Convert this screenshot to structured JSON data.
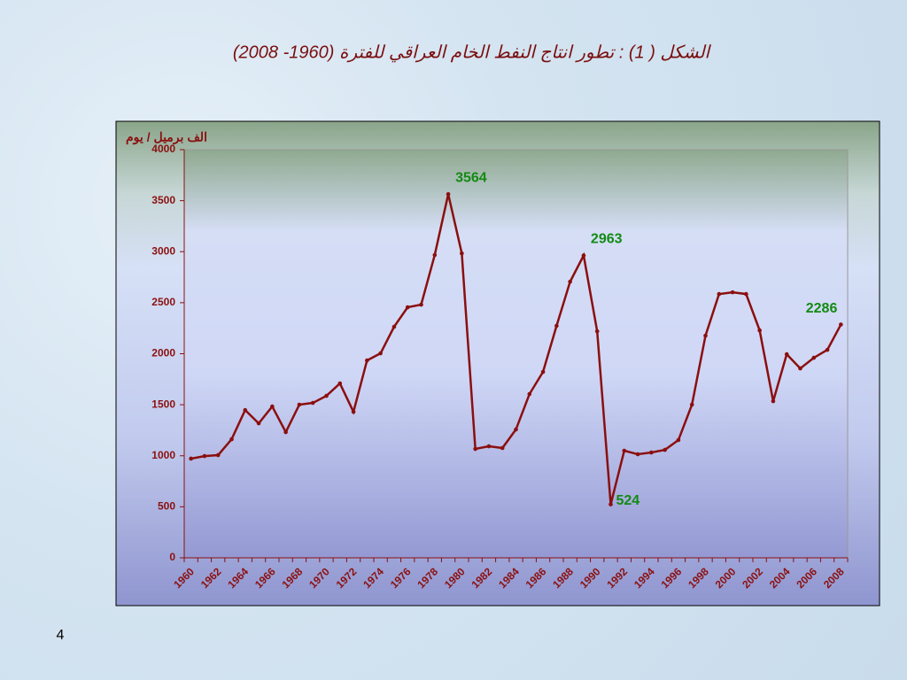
{
  "chart_data": {
    "type": "line",
    "title": "الشكل ( 1) : تطور انتاج النفط الخام العراقي للفترة (1960- 2008)",
    "y_label": "الف برميل / يوم",
    "page_number": "4",
    "categories": [
      "1960",
      null,
      "1962",
      null,
      "1964",
      null,
      "1966",
      null,
      "1968",
      null,
      "1970",
      null,
      "1972",
      null,
      "1974",
      null,
      "1976",
      null,
      "1978",
      null,
      "1980",
      null,
      "1982",
      null,
      "1984",
      null,
      "1986",
      null,
      "1988",
      null,
      "1990",
      null,
      "1992",
      null,
      "1994",
      null,
      "1996",
      null,
      "1998",
      null,
      "2000",
      null,
      "2002",
      null,
      "2004",
      null,
      "2006",
      null,
      "2008"
    ],
    "values": [
      972,
      997,
      1006,
      1162,
      1448,
      1318,
      1483,
      1232,
      1501,
      1518,
      1587,
      1709,
      1431,
      1934,
      2004,
      2264,
      2455,
      2481,
      2967,
      3564,
      2984,
      1067,
      1093,
      1076,
      1258,
      1605,
      1822,
      2273,
      2706,
      2963,
      2220,
      524,
      1050,
      1015,
      1032,
      1058,
      1154,
      1501,
      2177,
      2585,
      2602,
      2585,
      2229,
      1535,
      1995,
      1856,
      1960,
      2038,
      2286
    ],
    "value_labels": [
      null,
      null,
      null,
      null,
      null,
      null,
      null,
      null,
      null,
      null,
      null,
      null,
      null,
      null,
      null,
      null,
      null,
      null,
      null,
      "3564",
      null,
      null,
      null,
      null,
      null,
      null,
      null,
      null,
      null,
      "2963",
      null,
      "524",
      null,
      null,
      null,
      null,
      null,
      null,
      null,
      null,
      null,
      null,
      null,
      null,
      null,
      null,
      null,
      null,
      "2286"
    ],
    "color": "#8b0f0f",
    "label_color": "#138a13",
    "ylim": [
      0,
      4000
    ],
    "yticks": [
      0,
      500,
      1000,
      1500,
      2000,
      2500,
      3000,
      3500,
      4000
    ]
  }
}
